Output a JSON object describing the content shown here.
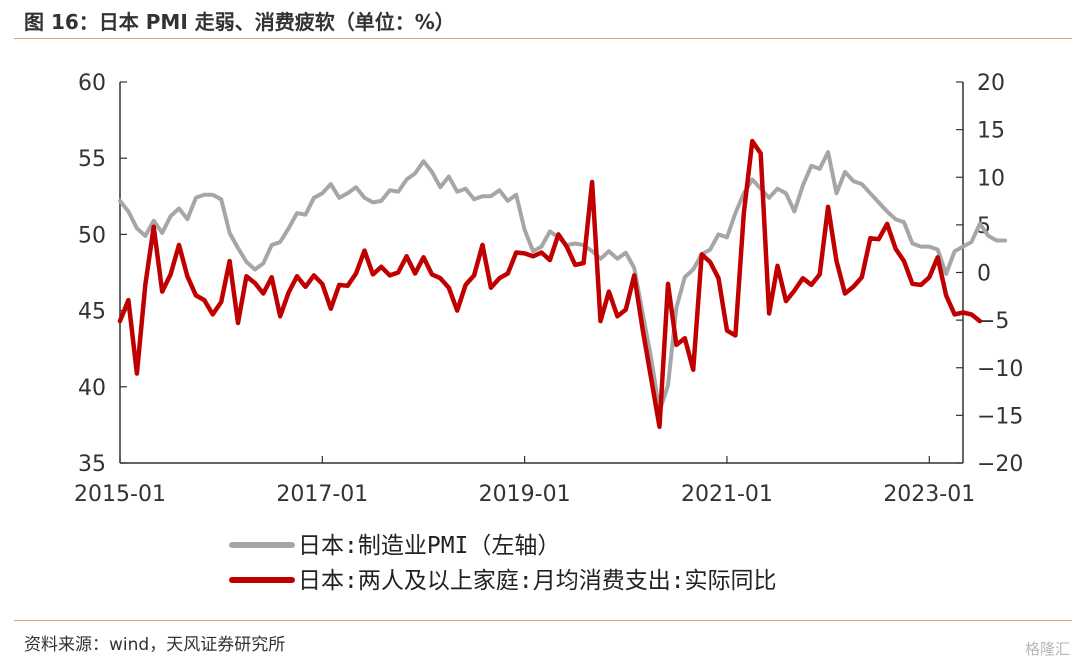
{
  "header": {
    "title": "图 16：日本 PMI 走弱、消费疲软（单位：%）"
  },
  "footer": {
    "source": "资料来源：wind，天风证券研究所",
    "watermark": "格隆汇"
  },
  "chart_data": {
    "type": "line",
    "title": "图 16：日本 PMI 走弱、消费疲软（单位：%）",
    "x_ticks": [
      "2015-01",
      "2017-01",
      "2019-01",
      "2021-01",
      "2023-01"
    ],
    "x_range": [
      "2015-01",
      "2023-05"
    ],
    "y_left": {
      "ticks": [
        "60",
        "55",
        "50",
        "45",
        "40",
        "35"
      ],
      "range": [
        35,
        60
      ]
    },
    "y_right": {
      "ticks": [
        "20",
        "15",
        "10",
        "5",
        "0",
        "−5",
        "−10",
        "−15",
        "−20"
      ],
      "range": [
        -20,
        20
      ]
    },
    "grid": false,
    "legend_placement": "bottom",
    "series": [
      {
        "name": "日本:制造业PMI（左轴）",
        "axis": "left",
        "color": "#a6a6a6",
        "start": "2015-01",
        "values": [
          52.2,
          51.5,
          50.4,
          49.9,
          50.9,
          50.1,
          51.2,
          51.7,
          51.0,
          52.4,
          52.6,
          52.6,
          52.3,
          50.1,
          49.1,
          48.2,
          47.7,
          48.1,
          49.3,
          49.5,
          50.4,
          51.4,
          51.3,
          52.4,
          52.7,
          53.3,
          52.4,
          52.7,
          53.1,
          52.4,
          52.1,
          52.2,
          52.9,
          52.8,
          53.6,
          54.0,
          54.8,
          54.1,
          53.1,
          53.8,
          52.8,
          53.0,
          52.3,
          52.5,
          52.5,
          52.9,
          52.2,
          52.6,
          50.3,
          48.9,
          49.2,
          50.2,
          49.8,
          49.3,
          49.4,
          49.3,
          48.9,
          48.4,
          48.9,
          48.4,
          48.8,
          47.8,
          44.8,
          41.9,
          38.4,
          40.1,
          45.2,
          47.2,
          47.7,
          48.7,
          49.0,
          50.0,
          49.8,
          51.4,
          52.7,
          53.6,
          53.0,
          52.4,
          53.0,
          52.7,
          51.5,
          53.2,
          54.5,
          54.3,
          55.4,
          52.7,
          54.1,
          53.5,
          53.3,
          52.7,
          52.1,
          51.5,
          51.0,
          50.8,
          49.4,
          49.2,
          49.2,
          49.0,
          47.4,
          48.9,
          49.2,
          49.5,
          50.7,
          49.9,
          49.6,
          49.6
        ]
      },
      {
        "name": "日本:两人及以上家庭:月均消费支出:实际同比",
        "axis": "right",
        "color": "#c00000",
        "start": "2015-01",
        "values": [
          -5.1,
          -2.9,
          -10.6,
          -1.3,
          4.8,
          -2.0,
          -0.2,
          2.9,
          -0.4,
          -2.4,
          -2.9,
          -4.4,
          -3.1,
          1.2,
          -5.3,
          -0.4,
          -1.1,
          -2.2,
          -0.5,
          -4.6,
          -2.1,
          -0.4,
          -1.5,
          -0.3,
          -1.2,
          -3.8,
          -1.3,
          -1.4,
          -0.1,
          2.3,
          -0.2,
          0.6,
          -0.3,
          0.0,
          1.7,
          -0.1,
          1.6,
          -0.2,
          -0.6,
          -1.6,
          -4.0,
          -1.3,
          -0.3,
          2.9,
          -1.6,
          -0.6,
          -0.1,
          2.1,
          2.0,
          1.7,
          2.1,
          1.3,
          4.0,
          2.7,
          0.8,
          1.0,
          9.5,
          -5.1,
          -2.0,
          -4.6,
          -3.9,
          -0.3,
          -6.0,
          -11.1,
          -16.2,
          -1.2,
          -7.6,
          -6.9,
          -10.2,
          1.9,
          1.1,
          -0.6,
          -6.1,
          -6.6,
          6.2,
          13.8,
          12.5,
          -4.3,
          0.7,
          -3.0,
          -1.9,
          -0.6,
          -1.3,
          -0.2,
          6.9,
          1.2,
          -2.2,
          -1.5,
          -0.5,
          3.6,
          3.5,
          5.1,
          2.5,
          1.2,
          -1.2,
          -1.3,
          -0.5,
          1.6,
          -2.4,
          -4.4,
          -4.2,
          -4.4,
          -5.1
        ]
      }
    ]
  }
}
